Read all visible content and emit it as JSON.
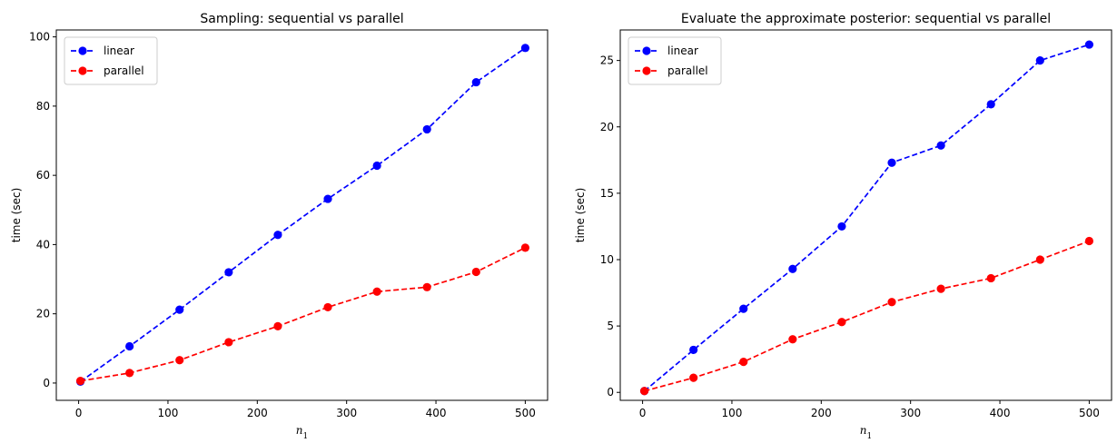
{
  "chart_data": [
    {
      "type": "line",
      "title": "Sampling: sequential vs parallel",
      "xlabel": "n",
      "xlabel_subscript": "1",
      "ylabel": "time (sec)",
      "xlim": [
        -25,
        525
      ],
      "ylim": [
        -5,
        102
      ],
      "xticks": [
        0,
        100,
        200,
        300,
        400,
        500
      ],
      "yticks": [
        0,
        20,
        40,
        60,
        80,
        100
      ],
      "grid": false,
      "legend_position": "upper-left",
      "x": [
        2,
        57,
        113,
        168,
        223,
        279,
        334,
        390,
        445,
        500
      ],
      "series": [
        {
          "name": "linear",
          "color": "#0000ff",
          "line_style": "dashed",
          "marker": "circle",
          "values": [
            0.4,
            10.6,
            21.2,
            32.0,
            42.8,
            53.2,
            62.8,
            73.3,
            86.9,
            96.8
          ]
        },
        {
          "name": "parallel",
          "color": "#ff0000",
          "line_style": "dashed",
          "marker": "circle",
          "values": [
            0.6,
            2.9,
            6.6,
            11.8,
            16.4,
            21.9,
            26.4,
            27.7,
            32.1,
            39.1
          ]
        }
      ]
    },
    {
      "type": "line",
      "title": "Evaluate the approximate posterior: sequential vs parallel",
      "xlabel": "n",
      "xlabel_subscript": "1",
      "ylabel": "time (sec)",
      "xlim": [
        -25,
        525
      ],
      "ylim": [
        -0.6,
        27.3
      ],
      "xticks": [
        0,
        100,
        200,
        300,
        400,
        500
      ],
      "yticks": [
        0,
        5,
        10,
        15,
        20,
        25
      ],
      "grid": false,
      "legend_position": "upper-left",
      "x": [
        2,
        57,
        113,
        168,
        223,
        279,
        334,
        390,
        445,
        500
      ],
      "series": [
        {
          "name": "linear",
          "color": "#0000ff",
          "line_style": "dashed",
          "marker": "circle",
          "values": [
            0.1,
            3.2,
            6.3,
            9.3,
            12.5,
            17.3,
            18.6,
            21.7,
            25.0,
            26.2
          ]
        },
        {
          "name": "parallel",
          "color": "#ff0000",
          "line_style": "dashed",
          "marker": "circle",
          "values": [
            0.1,
            1.1,
            2.3,
            4.0,
            5.3,
            6.8,
            7.8,
            8.6,
            10.0,
            11.4
          ]
        }
      ]
    }
  ]
}
